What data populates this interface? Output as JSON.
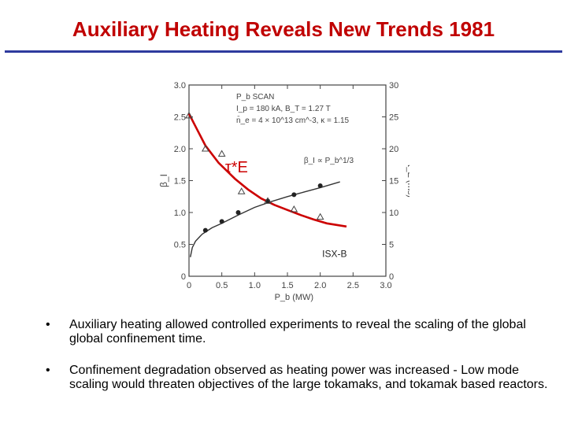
{
  "slide": {
    "title": "Auxiliary Heating Reveals New Trends 1981",
    "bullet_marker": "•",
    "bullets": [
      "Auxiliary heating allowed controlled experiments to reveal the scaling of the global global confinement time.",
      "Confinement degradation observed as heating power was increased - Low mode scaling would threaten objectives of the large tokamaks, and tokamak based reactors."
    ]
  },
  "chart_data": {
    "type": "scatter",
    "title": "",
    "xlabel": "P_b (MW)",
    "ylabel_left": "β_I",
    "ylabel_right": "τ_E (ms)",
    "xlim": [
      0,
      3.0
    ],
    "ylim_left": [
      0,
      3.0
    ],
    "ylim_right": [
      0,
      30
    ],
    "x_ticks": [
      "0",
      "0.5",
      "1.0",
      "1.5",
      "2.0",
      "2.5",
      "3.0"
    ],
    "y_ticks_left": [
      "0",
      "0.5",
      "1.0",
      "1.5",
      "2.0",
      "2.5",
      "3.0"
    ],
    "y_ticks_right": [
      "0",
      "5",
      "10",
      "15",
      "20",
      "25",
      "30"
    ],
    "legend_lines": [
      "P_b SCAN",
      "I_p = 180 kA, B_T = 1.27 T",
      "n̄_e = 4 × 10^13 cm^-3, κ = 1.15"
    ],
    "annotations": {
      "beta_fit": "β_I ∝ P_b^1/3",
      "tau_label": "τ*E",
      "device": "ISX-B"
    },
    "series": [
      {
        "name": "β_I",
        "marker": "dot",
        "x": [
          0.25,
          0.5,
          0.75,
          1.2,
          1.6,
          2.0
        ],
        "y": [
          0.72,
          0.86,
          1.0,
          1.18,
          1.28,
          1.42
        ]
      },
      {
        "name": "τ_E",
        "marker": "triangle",
        "x": [
          0.0,
          0.25,
          0.5,
          0.8,
          1.2,
          1.6,
          2.0
        ],
        "y": [
          25.2,
          20.0,
          19.2,
          13.3,
          11.8,
          10.5,
          9.3
        ]
      }
    ],
    "curves": {
      "beta_fit": {
        "x": [
          0.02,
          0.05,
          0.1,
          0.2,
          0.35,
          0.5,
          0.75,
          1.0,
          1.25,
          1.5,
          1.75,
          2.0,
          2.3
        ],
        "y": [
          0.3,
          0.45,
          0.55,
          0.66,
          0.76,
          0.83,
          0.96,
          1.08,
          1.17,
          1.25,
          1.32,
          1.39,
          1.48
        ]
      },
      "tau_fit": {
        "x": [
          0.0,
          0.1,
          0.25,
          0.45,
          0.7,
          0.9,
          1.1,
          1.3,
          1.5,
          1.7,
          1.9,
          2.1,
          2.4
        ],
        "y": [
          25.5,
          23.5,
          20.5,
          17.8,
          15.3,
          13.6,
          12.2,
          11.2,
          10.4,
          9.6,
          8.9,
          8.3,
          7.8
        ]
      }
    },
    "colors": {
      "tau_curve": "#cc0000",
      "beta_curve": "#333333",
      "title": "#c00000",
      "rule": "#2e3a9e"
    }
  }
}
